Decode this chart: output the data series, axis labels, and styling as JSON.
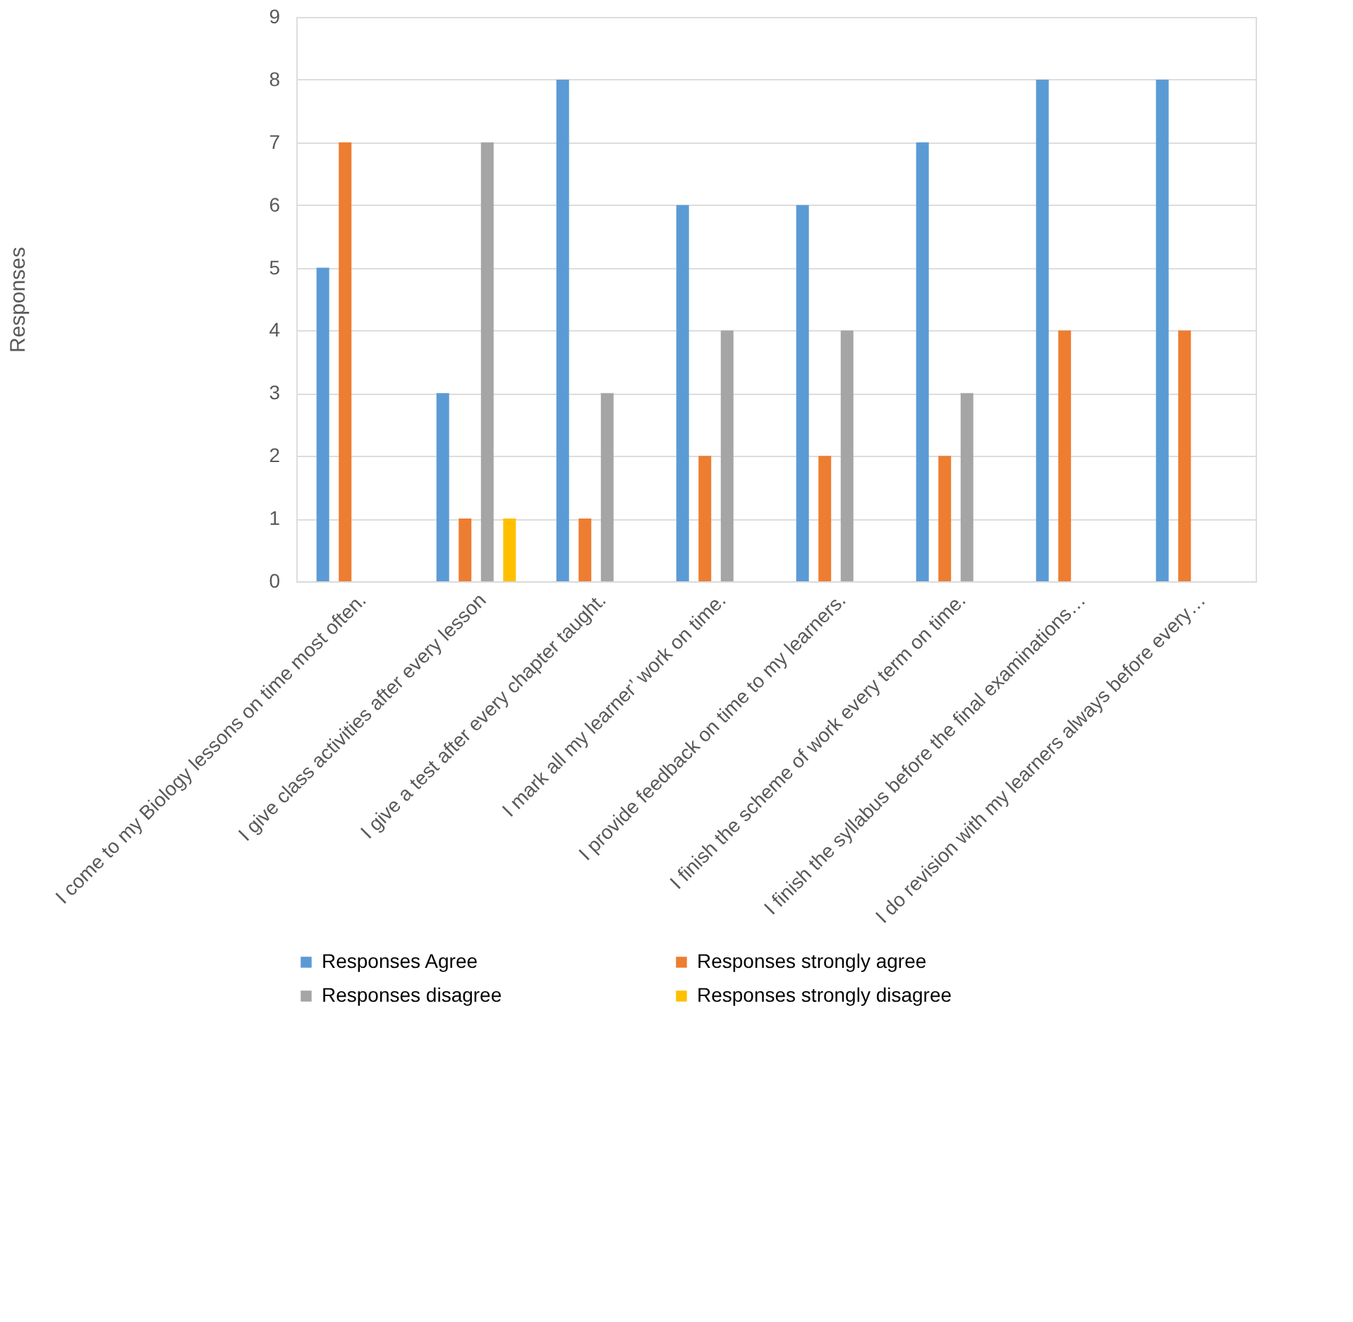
{
  "chart_data": {
    "type": "bar",
    "ylabel": "Responses",
    "categories": [
      "I come to my Biology lessons on time most often.",
      "I give class activities after every lesson",
      "I give a test after every chapter taught.",
      "I mark all my learner’ work on time.",
      "I provide feedback on time to my learners.",
      "I finish the scheme of work every term on time.",
      "I finish the syllabus before the final examinations…",
      "I do revision with my learners always before every…"
    ],
    "series": [
      {
        "name": "Responses Agree",
        "color": "#5b9bd5",
        "values": [
          5,
          3,
          8,
          6,
          6,
          7,
          8,
          8
        ]
      },
      {
        "name": "Responses strongly agree",
        "color": "#ed7d31",
        "values": [
          7,
          1,
          1,
          2,
          2,
          2,
          4,
          4
        ]
      },
      {
        "name": "Responses disagree",
        "color": "#a5a5a5",
        "values": [
          null,
          7,
          3,
          4,
          4,
          3,
          null,
          null
        ]
      },
      {
        "name": "Responses strongly disagree",
        "color": "#ffc000",
        "values": [
          null,
          1,
          null,
          null,
          null,
          null,
          null,
          null
        ]
      }
    ],
    "ylim": [
      0,
      9
    ],
    "yticks": [
      0,
      1,
      2,
      3,
      4,
      5,
      6,
      7,
      8,
      9
    ],
    "grid": "y",
    "legend": "bottom"
  }
}
